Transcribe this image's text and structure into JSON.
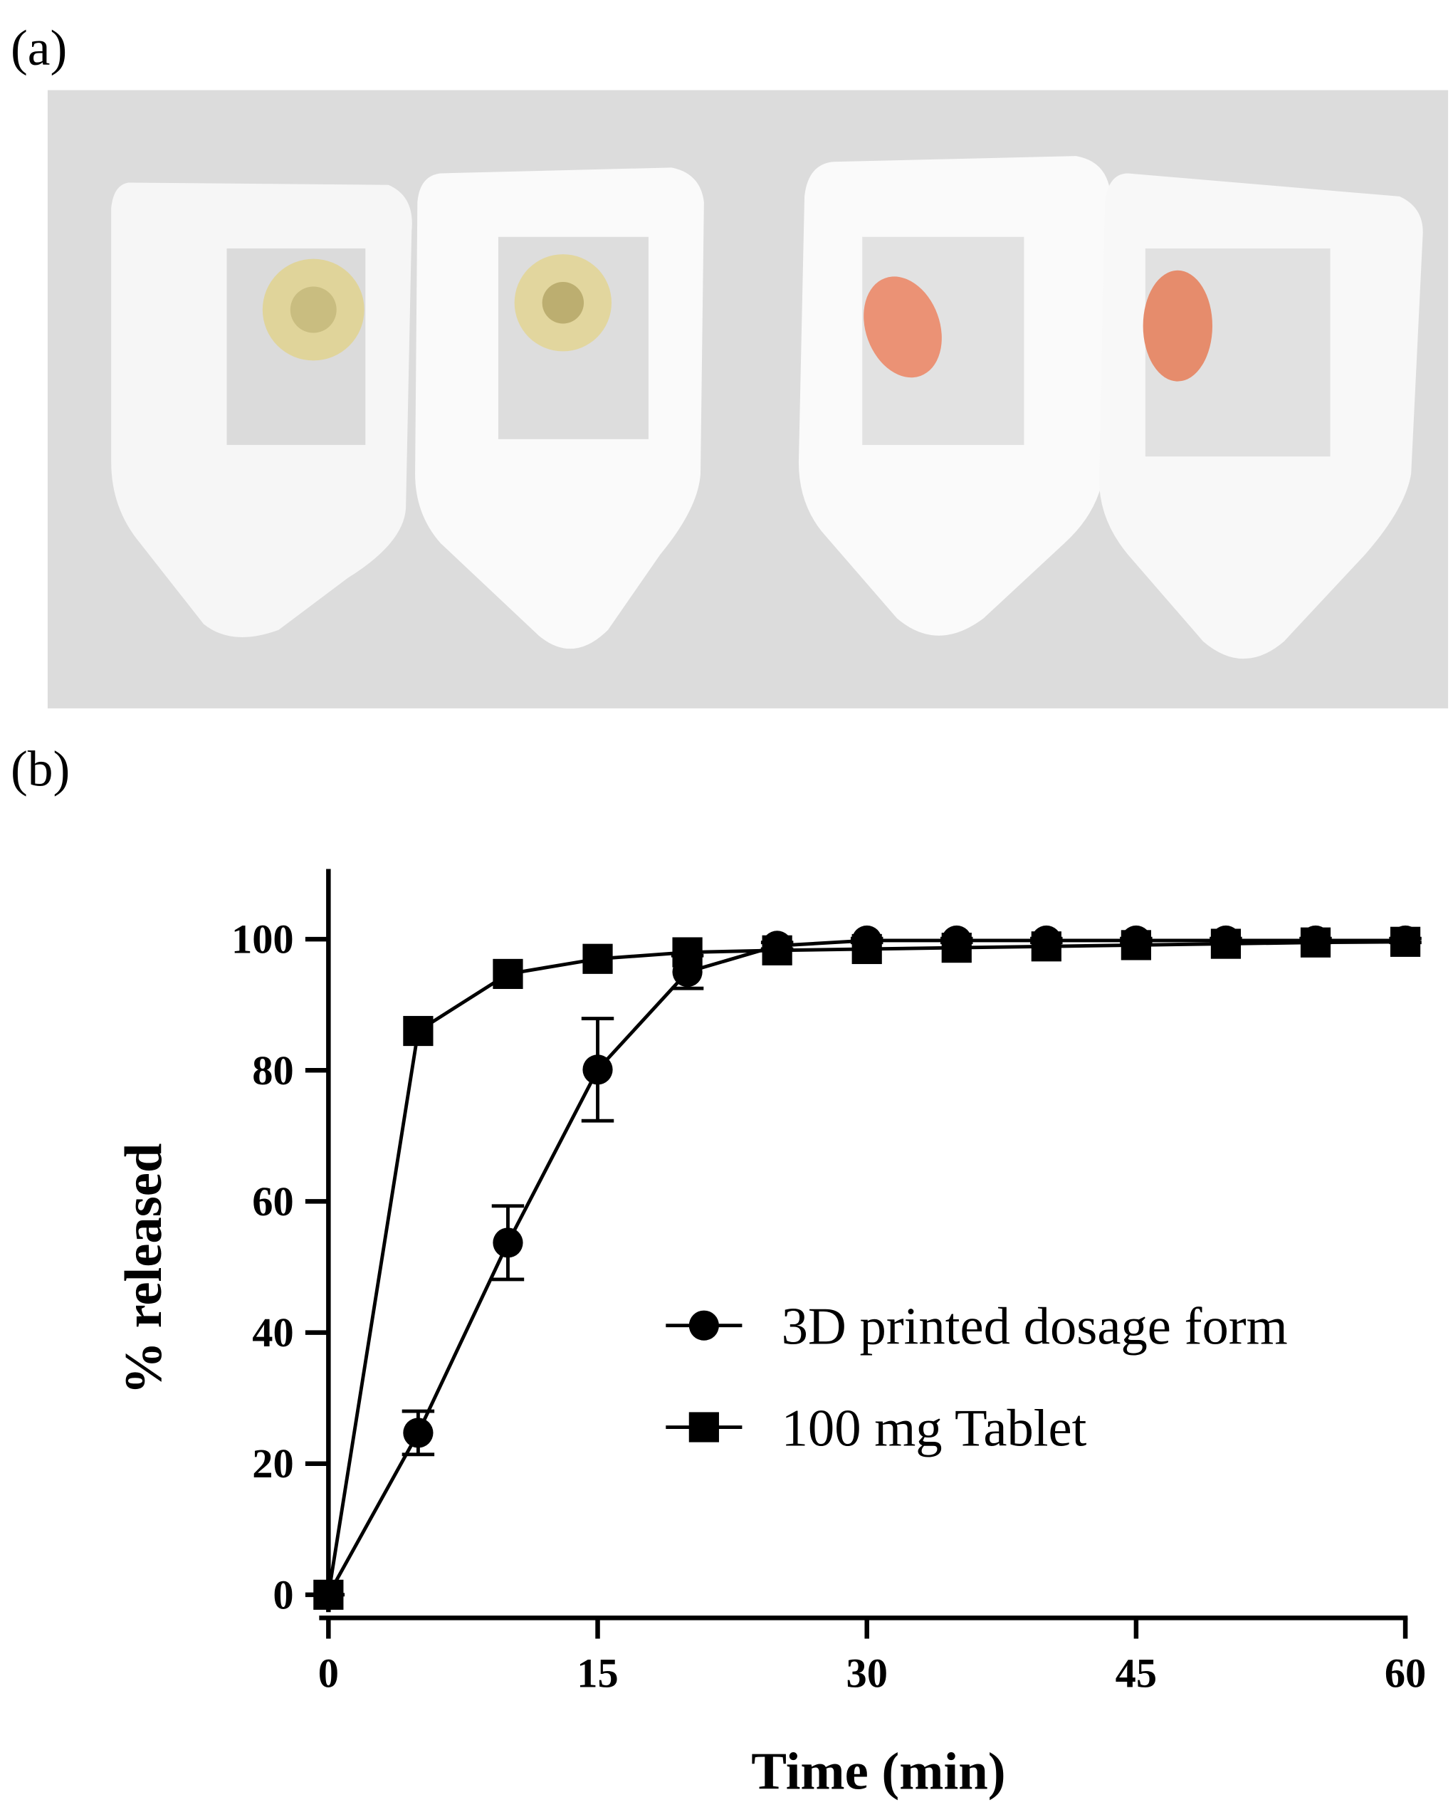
{
  "panel_labels": [
    "(a)",
    "(b)"
  ],
  "chart_data": {
    "type": "line",
    "xlabel": "Time (min)",
    "ylabel": "% released",
    "x": [
      0,
      5,
      10,
      15,
      20,
      25,
      30,
      35,
      40,
      45,
      50,
      55,
      60
    ],
    "series": [
      {
        "name": "3D printed dosage form",
        "color": "#000000",
        "marker": "circle",
        "values": [
          0,
          24.7,
          53.7,
          80.1,
          95,
          99,
          99.8,
          99.8,
          99.8,
          99.8,
          99.8,
          99.8,
          99.8
        ],
        "errors": [
          0,
          3.3,
          5.6,
          7.8,
          2.5,
          0.5,
          0.3,
          0.3,
          0.3,
          0.3,
          0.3,
          0.3,
          0.3
        ]
      },
      {
        "name": "100 mg Tablet",
        "color": "#000000",
        "marker": "square",
        "values": [
          0,
          86,
          94.7,
          97,
          98,
          98.3,
          98.5,
          98.7,
          98.9,
          99.1,
          99.3,
          99.5,
          99.6
        ]
      }
    ],
    "xlim": [
      0,
      60
    ],
    "xticks": [
      0,
      15,
      30,
      45,
      60
    ],
    "ylim": [
      0,
      110
    ],
    "yticks": [
      0,
      20,
      40,
      60,
      80,
      100
    ],
    "grid": false,
    "legend": "lower right"
  }
}
